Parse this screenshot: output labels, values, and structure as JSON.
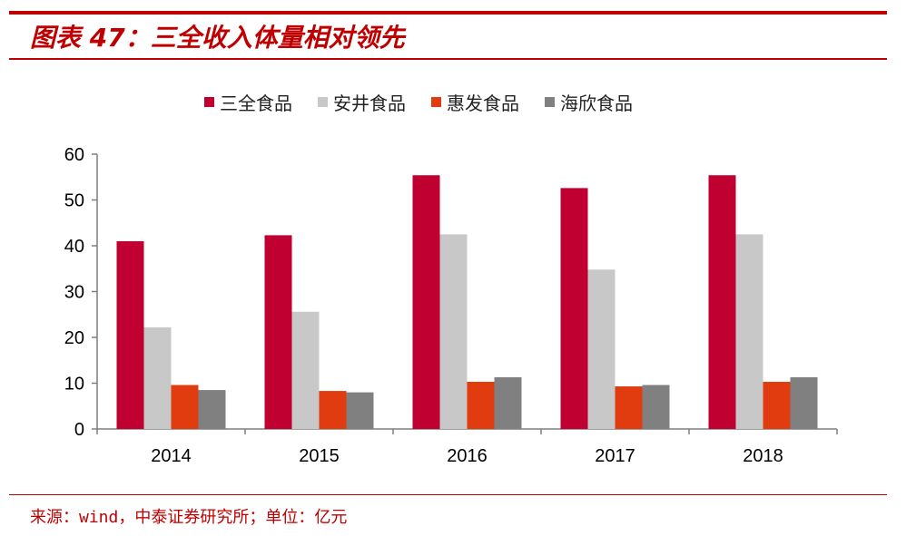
{
  "header": {
    "title": "图表 47：三全收入体量相对领先"
  },
  "footer": {
    "source": "来源：wind，中泰证券研究所；单位：亿元"
  },
  "colors": {
    "accent": "#c00000"
  },
  "chart_data": {
    "type": "bar",
    "categories": [
      "2014",
      "2015",
      "2016",
      "2017",
      "2018"
    ],
    "series": [
      {
        "name": "三全食品",
        "color": "#c00030",
        "values": [
          41.0,
          42.3,
          55.4,
          52.6,
          55.4
        ]
      },
      {
        "name": "安井食品",
        "color": "#c8c8c8",
        "values": [
          22.2,
          25.6,
          42.5,
          34.8,
          42.5
        ]
      },
      {
        "name": "惠发食品",
        "color": "#e03c10",
        "values": [
          9.6,
          8.3,
          10.3,
          9.3,
          10.3
        ]
      },
      {
        "name": "海欣食品",
        "color": "#808080",
        "values": [
          8.5,
          8.0,
          11.3,
          9.6,
          11.3
        ]
      }
    ],
    "ylim": [
      0,
      60
    ],
    "yticks": [
      0,
      10,
      20,
      30,
      40,
      50,
      60
    ],
    "legend_position": "top",
    "grid": false,
    "title": "",
    "xlabel": "",
    "ylabel": ""
  }
}
